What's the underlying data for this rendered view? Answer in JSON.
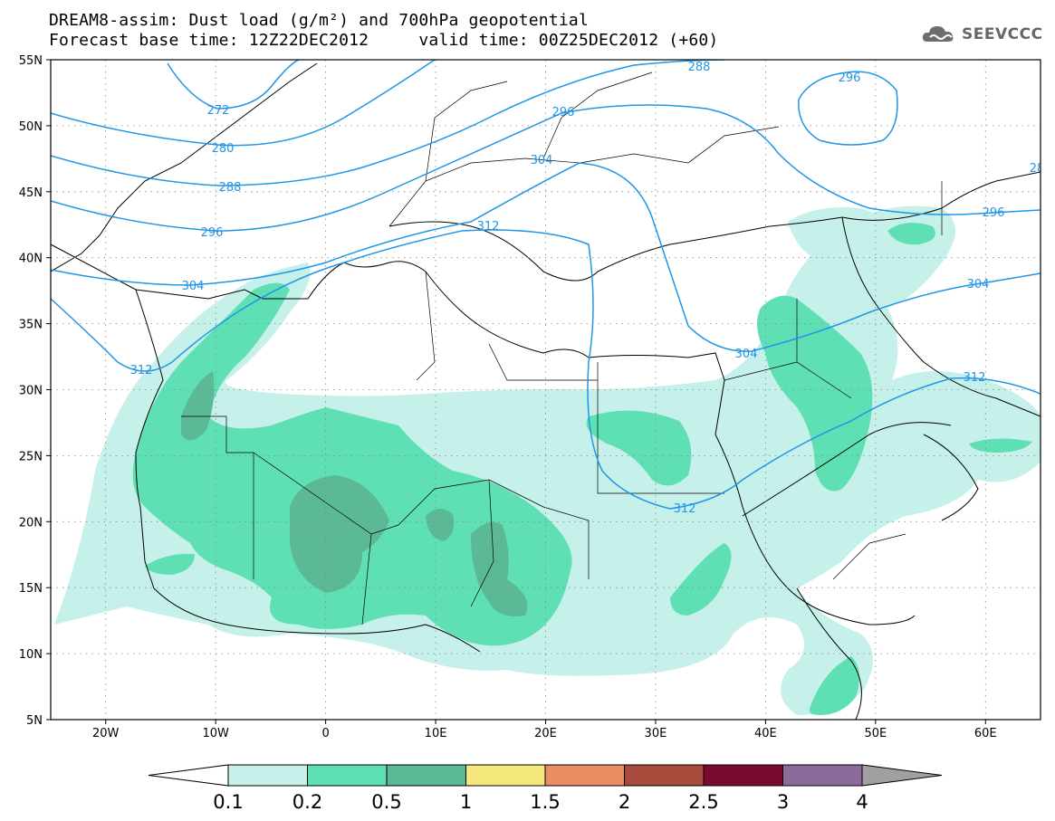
{
  "header": {
    "title_line1": "DREAM8-assim: Dust load (g/m²) and 700hPa geopotential",
    "title_line2": "Forecast base time: 12Z22DEC2012     valid time: 00Z25DEC2012 (+60)",
    "logo_text": "SEEVCCC"
  },
  "map": {
    "lon_range": [
      -25,
      65
    ],
    "lat_range": [
      5,
      55
    ],
    "lon_labels": [
      "20W",
      "10W",
      "0",
      "10E",
      "20E",
      "30E",
      "40E",
      "50E",
      "60E"
    ],
    "lat_labels": [
      "55N",
      "50N",
      "45N",
      "40N",
      "35N",
      "30N",
      "25N",
      "20N",
      "15N",
      "10N",
      "5N"
    ],
    "contour_labels": [
      "272",
      "280",
      "288",
      "296",
      "304",
      "312",
      "288",
      "296",
      "304",
      "312",
      "296",
      "296",
      "304",
      "304",
      "312",
      "312",
      "28"
    ]
  },
  "legend": {
    "labels": [
      "0.1",
      "0.2",
      "0.5",
      "1",
      "1.5",
      "2",
      "2.5",
      "3",
      "4"
    ],
    "colors": [
      "#c6f0ea",
      "#5fe0b4",
      "#5cb996",
      "#f4e87c",
      "#e98d62",
      "#a84a3c",
      "#7a0a2e",
      "#8c6a9c"
    ],
    "left_arrow_color": "#ffffff",
    "right_arrow_color": "#a0a0a0"
  },
  "colors": {
    "contour": "#2196e6",
    "coast": "#000000"
  }
}
